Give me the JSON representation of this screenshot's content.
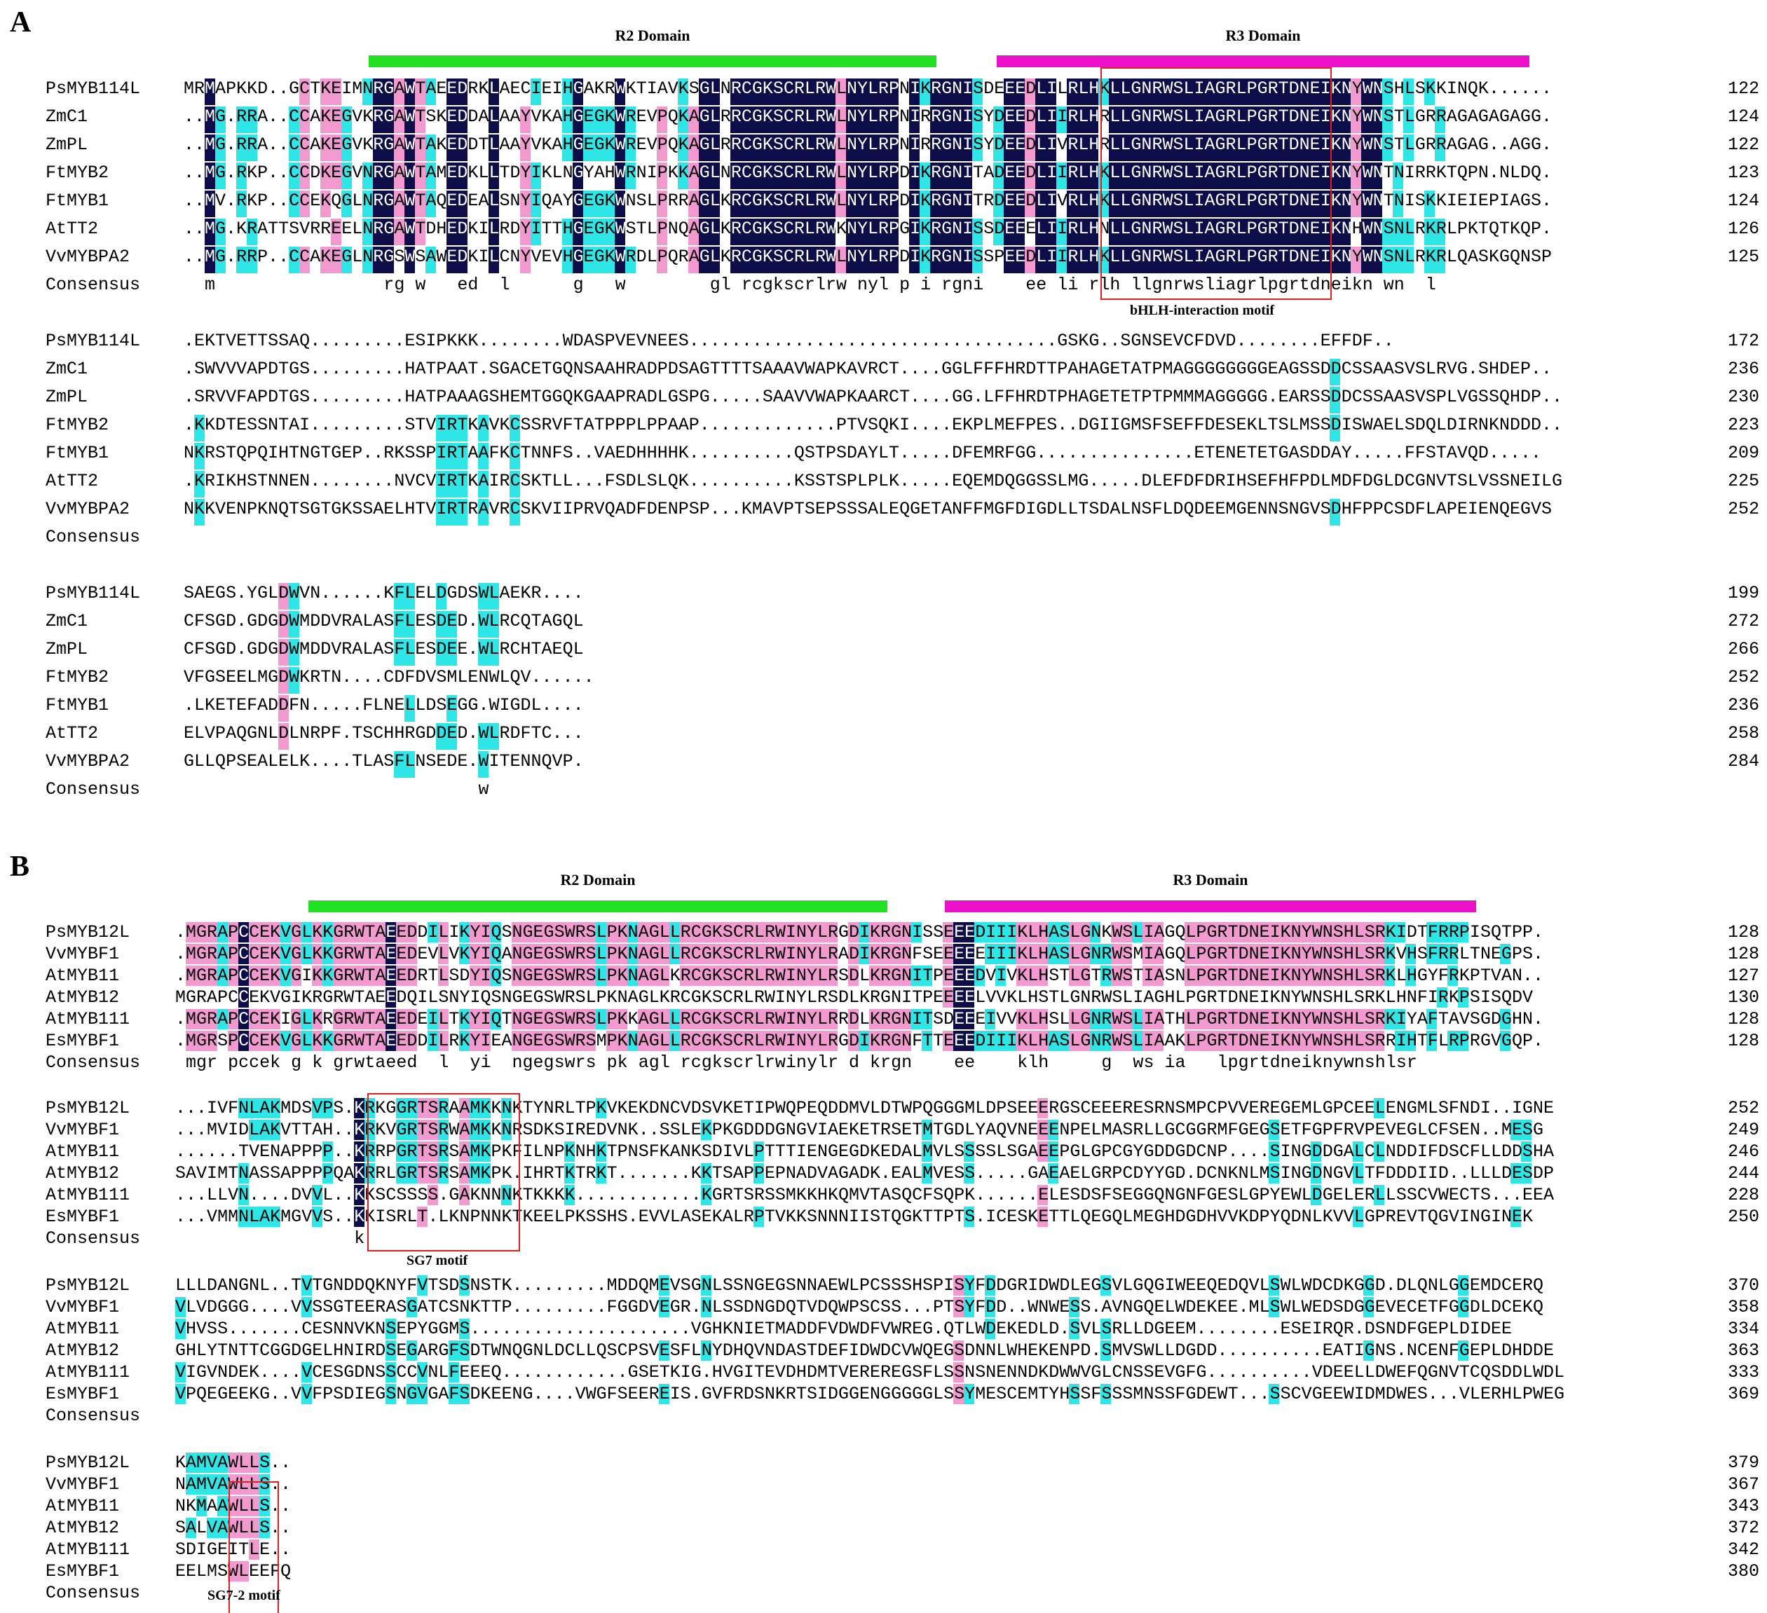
{
  "panels": {
    "A": {
      "label": "A",
      "domains": [
        {
          "name": "R2 Domain",
          "color": "#22e022"
        },
        {
          "name": "R3 Domain",
          "color": "#ee11cc"
        }
      ],
      "motif_label": "bHLH-interaction motif",
      "blocks": [
        {
          "rows": [
            {
              "name": "PsMYB114L",
              "seq": "MRMAPKKD..GCTKEIMNRGAWTAEEDRKLAECIEIHGAKRWKTIAVKSGLNRCGKSCRLRWLNYLRPNIKRGNISDEEEDLILRLHKLLGNRWSLIAGRLPGRTDNEIKNYWNSHLSKKINQK......",
              "end": "122"
            },
            {
              "name": "ZmC1",
              "seq": "..MG.RRA..CCAKEGVKRGAWTSKEDDALAAYVKAHGEGKWREVPQKAGLRRCGKSCRLRWLNYLRPNIRRGNISYDEEDLIIRLHRLLGNRWSLIAGRLPGRTDNEIKNYWNSTLGRRAGAGAGAGG.",
              "end": "124"
            },
            {
              "name": "ZmPL",
              "seq": "..MG.RRA..CCAKEGVKRGAWTAKEDDTLAAYVKAHGEGKWREVPQKAGLRRCGKSCRLRWLNYLRPNIRRGNISYDEEDLIVRLHRLLGNRWSLIAGRLPGRTDNEIKNYWNSTLGRRAGAG..AGG.",
              "end": "122"
            },
            {
              "name": "FtMYB2",
              "seq": "..MG.RKP..CCDKEGVNRGAWTAMEDKLLTDYIKLNGYAHWRNIPKKAGLNRCGKSCRLRWLNYLRPDIKRGNITADEEDLIIRLHKLLGNRWSLIAGRLPGRTDNEIKNYWNTNIRRKTQPN.NLDQ.",
              "end": "123"
            },
            {
              "name": "FtMYB1",
              "seq": "..MV.RKP..CCEKQGLNRGAWTAQEDEALSNYIQAYGEGKWNSLPRRAGLKRCGKSCRLRWLNYLRPDIKRGNITRDEEDLIVRLHKLLGNRWSLIAGRLPGRTDNEIKNYWNTNISKKIEIEPIAGS.",
              "end": "124"
            },
            {
              "name": "AtTT2",
              "seq": "..MG.KRATTSVRREELNRGAWTDHEDKILRDYITTHGEGKWSTLPNQAGLKRCGKSCRLRWKNYLRPGIKRGNISSDEEELIIRLHNLLGNRWSLIAGRLPGRTDNEIKNHWNSNLRKRLPKTQTKQP.",
              "end": "126"
            },
            {
              "name": "VvMYBPA2",
              "seq": "..MG.RRP..CCAKEGLNRGSWSAWEDKILCNYVEVHGEGKWRDLPQRAGLKRCGKSCRLRWLNYLRPDIKRGNISSPEEDLIIRLHKLLGNRWSLIAGRLPGRTDNEIKNYWNSNLRKRLQASKGQNSP",
              "end": "125"
            },
            {
              "name": "Consensus",
              "seq": "  m                rg w   ed  l      g   w        gl rcgkscrlrw nyl p i rgni    ee li rlh llgnrwsliagrlpgrtdneikn wn  l             ",
              "end": ""
            }
          ]
        },
        {
          "rows": [
            {
              "name": "PsMYB114L",
              "seq": ".EKTVETTSSAQ.........ESIPKKK........WDASPVEVNEES...................................GSKG..SGNSEVCFDVD........EFFDF..",
              "end": "172"
            },
            {
              "name": "ZmC1",
              "seq": ".SWVVVAPDTGS.........HATPAAT.SGACETGQNSAAHRADPDSAGTTTTSAAAVWAPKAVRCT....GGLFFFHRDTTPAHAGETATPMAGGGGGGGGEAGSSDDCSSAASVSLRVG.SHDEP..",
              "end": "236"
            },
            {
              "name": "ZmPL",
              "seq": ".SRVVFAPDTGS.........HATPAAAGSHEMTGGQKGAAPRADLGSPG.....SAAVVWAPKAARCT....GG.LFFHRDTPHAGETETPTPMMMAGGGGG.EARSSDDCSSAASVSPLVGSSQHDP..",
              "end": "230"
            },
            {
              "name": "FtMYB2",
              "seq": ".KKDTESSNTAI.........STVIRTKAVKCSSRVFTATPPPLPPAAP.............PTVSQKI....EKPLMEFPES..DGIIGMSFSEFFDESEKLTSLMSSDISWAELSDQLDIRNKNDDD..",
              "end": "223"
            },
            {
              "name": "FtMYB1",
              "seq": "NKRSTQPQIHTNGTGEP..RKSSPIRTAAFKCTNNFS..VAEDHHHHK..........QSTPSDAYLT.....DFEMRFGG...............ETENETETGASDDAY.....FFSTAVQD.....",
              "end": "209"
            },
            {
              "name": "AtTT2",
              "seq": ".KRIKHSTNNEN........NVCVIRTKAIRCSKTLL...FSDLSLQK..........KSSTSPLPLK.....EQEMDQGGSSLMG.....DLEFDFDRIHSEFHFPDLMDFDGLDCGNVTSLVSSNEILG",
              "end": "225"
            },
            {
              "name": "VvMYBPA2",
              "seq": "NKKVENPKNQTSGTGKSSAELHTVIRTRAVRCSKVIIPRVQADFDENPSP...KMAVPTSEPSSSALEQGETANFFMGFDIGDLLTSDALNSFLDQDEEMGENNSNGVSDHFPPCSDFLAPEIENQEGVS",
              "end": "252"
            },
            {
              "name": "Consensus",
              "seq": "",
              "end": ""
            }
          ]
        },
        {
          "rows": [
            {
              "name": "PsMYB114L",
              "seq": "SAEGS.YGLDWVN......KFLELDGDSWLAEKR....",
              "end": "199"
            },
            {
              "name": "ZmC1",
              "seq": "CFSGD.GDGDWMDDVRALASFLESDED.WLRCQTAGQL",
              "end": "272"
            },
            {
              "name": "ZmPL",
              "seq": "CFSGD.GDGDWMDDVRALASFLESDEE.WLRCHTAEQL",
              "end": "266"
            },
            {
              "name": "FtMYB2",
              "seq": "VFGSEELMGDWKRTN....CDFDVSMLENWLQV......",
              "end": "252"
            },
            {
              "name": "FtMYB1",
              "seq": ".LKETEFADDFN.....FLNELLDSEGG.WIGDL....",
              "end": "236"
            },
            {
              "name": "AtTT2",
              "seq": "ELVPAQGNLDLNRPF.TSCHHRGDDED.WLRDFTC...",
              "end": "258"
            },
            {
              "name": "VvMYBPA2",
              "seq": "GLLQPSEALELK....TLASFLNSEDE.WITENNQVP.",
              "end": "284"
            },
            {
              "name": "Consensus",
              "seq": "                            w         ",
              "end": ""
            }
          ]
        }
      ]
    },
    "B": {
      "label": "B",
      "domains": [
        {
          "name": "R2 Domain",
          "color": "#22e022"
        },
        {
          "name": "R3 Domain",
          "color": "#ee11cc"
        }
      ],
      "motif1_label": "SG7 motif",
      "motif2_label": "SG7-2 motif",
      "blocks": [
        {
          "rows": [
            {
              "name": "PsMYB12L",
              "seq": ".MGRAPCCEKVGLKKGRWTAEEDDILIKYIQSNGEGSWRSLPKNAGLLRCGKSCRLRWINYLRGDIKRGNISSEEEDIIIKLHASLGNKWSLIAGQLPGRTDNEIKNYWNSHLSRKIDTFRRPISQTPP.",
              "end": "128"
            },
            {
              "name": "VvMYBF1",
              "seq": ".MGRAPCCEKVGLKKGRWTAEEDEVLVKYIQANGEGSWRSLPKNAGLLRCGKSCRLRWINYLRADIKRGNFSEEEEEIIIKLHASLGNRWSMIAGQLPGRTDNEIKNYWNSHLSRKVHSFRRLTNEGPS.",
              "end": "128"
            },
            {
              "name": "AtMYB11",
              "seq": ".MGRAPCCEKVGIKKGRWTAEEDRTLSDYIQSNGEGSWRSLPKNAGLKRCGKSCRLRWINYLRSDLKRGNITPEEEDVIVKLHSTLGTRWSTIASNLPGRTDNEIKNYWNSHLSRKLHGYFRKPTVAN..",
              "end": "127"
            },
            {
              "name": "AtMYB12",
              "seq": "MGRAPCCEKVGIKRGRWTAEEDQILSNYIQSNGEGSWRSLPKNAGLKRCGKSCRLRWINYLRSDLKRGNITPEEEELVVKLHSTLGNRWSLIAGHLPGRTDNEIKNYWNSHLSRKLHNFIRKPSISQDV",
              "end": "130"
            },
            {
              "name": "AtMYB111",
              "seq": ".MGRAPCCEKIGLKRGRWTAEEDEILTKYIQTNGEGSWRSLPKKAGLLRCGKSCRLRWINYLRRDLKRGNITSDEEEIVVKLHSLLGNRWSLIATHLPGRTDNEIKNYWNSHLSRKIYAFTAVSGDGHN.",
              "end": "128"
            },
            {
              "name": "EsMYBF1",
              "seq": ".MGRSPCCEKVGLKKGRWTAEEDDILRKYIEANGEGSWRSMPKNAGLLRCGKSCRLRWINYLRGDIKRGNFTTEEEDIIIKLHASLGNRWSLIAAKLPGRTDNEIKNYWNSHLSRRIHTFLRPRGVGQP.",
              "end": "128"
            },
            {
              "name": "Consensus",
              "seq": " mgr pccek g k grwtaeed  l  yi  ngegswrs pk agl rcgkscrlrwinylr d krgn    ee    klh     g  ws ia   lpgrtdneiknywnshlsr              ",
              "end": ""
            }
          ]
        },
        {
          "rows": [
            {
              "name": "PsMYB12L",
              "seq": "...IVFNLAKMDSVPS.KRKGGRTSRAAMKKNKTYNRLTPKVKEKDNCVDSVKETIPWQPEQDDMVLDTWPQGGGMLDPSEEERGSCEEERESRNSMPCPVVEREGEMLGPCEELENGMLSFNDI..IGNE",
              "end": "252"
            },
            {
              "name": "VvMYBF1",
              "seq": "...MVIDLAKVTTAH..KRKVGRTSRWAMKKNRSDKSIREDVNK..SSLEKPKGDDDGNGVIAEKETRSETMTGDLYAQVNEEENPELMASRLLGCGGRMFGEGSETFGPFRVPEVEGLCFSEN..MESG",
              "end": "249"
            },
            {
              "name": "AtMYB11",
              "seq": "......TVENAPPPP..KRRPGRTSRSAMKPKFILNPKNHKTPNSFKANKSDIVLPTTTIENGEGDKEDALMVLSSSSLSGAEEPGLGPCGYGDDGDCNP....SINGDDGALCLNDDIFDSCFLLDDSHA",
              "end": "246"
            },
            {
              "name": "AtMYB12",
              "seq": "SAVIMTNASSAPPPPQAKRRLGRTSRSAMKPK.IHRTKTRKT.......KKTSAPPEPNADVAGADK.EALMVESS.....GAEAELGRPCDYYGD.DCNKNLMSINGDNGVLTFDDDIID..LLLDESDP",
              "end": "244"
            },
            {
              "name": "AtMYB111",
              "seq": "...LLVN....DVVL..KKSCSSSS.GAKNNNKTKKKK............KGRTSRSSMKKHKQMVTASQCFSQPK......ELESDSFSEGGQNGNFGESLGPYEWLDGELERLLSSCVWECTS...EEA",
              "end": "228"
            },
            {
              "name": "EsMYBF1",
              "seq": "...VMMNLAKMGVVS..KKISRLT.LKNPNNKTKEELPKSSHS.EVVLASEKALRPTVKKSNNNIISTQGKTTPTS.ICESKETTLQEGQLMEGHDGDHVVKDPYQDNLKVVLGPREVTQGVINGINEK",
              "end": "250"
            },
            {
              "name": "Consensus",
              "seq": "                 k                                                                                                                    ",
              "end": ""
            }
          ]
        },
        {
          "rows": [
            {
              "name": "PsMYB12L",
              "seq": "LLLDANGNL..TVTGNDDQKNYFVTSDSNSTK.........MDDQMEVSGNLSSNGEGSNNAEWLPCSSSHSPISYFDDGRIDWDLEGSVLGQGIWEEQEDQVLSWLWDCDKGGD.DLQNLGGEMDCERQ",
              "end": "370"
            },
            {
              "name": "VvMYBF1",
              "seq": "VLVDGGG....VVSSGTEERASGATCSNKTTP.........FGGDVEGR.NLSSDNGDQTVDQWPSCSS...PTSYFDD..WNWESS.AVNGQELWDEKEE.MLSWLWEDSDGGEVECETFGGDLDCEKQ",
              "end": "358"
            },
            {
              "name": "AtMYB11",
              "seq": "VHVSS.......CESNNVKNSEPYGGMS.....................VGHKNIETMADDFVDWDFVWREG.QTLWDEKEDLD.SVLSRLLDGEEM........ESEIRQR.DSNDFGEPLDIDEE",
              "end": "334"
            },
            {
              "name": "AtMYB12",
              "seq": "GHLYTNTTCGGDGELHNIRDSEGARGFSDTWNQGNLDCLLQSCPSVESFLNYDHQVNDASTDEFIDWDCVWQEGSDNNLWHEKENPD.SMVSWLLDGDD..........EATIGNS.NCENFGEPLDHDDE",
              "end": "363"
            },
            {
              "name": "AtMYB111",
              "seq": "VIGVNDEK....VCESGDNSSCCVNLFEEEQ............GSETKIG.HVGITEVDHDMTVEREREGSFLSSNSNENNDKDWWVGLCNSSEVGFG..........VDEELLDWEFQGNVTCQSDDLWDL",
              "end": "333"
            },
            {
              "name": "EsMYBF1",
              "seq": "VPQEGEEKG..VVFPSDIEGSNGVGAFSDKEENG....VWGFSEEREIS.GVFRDSNKRTSIDGGENGGGGGLSSYMESCEMTYHSSFSSSMNSSFGDEWT...SSCVGEEWIDMDWES...VLERHLPWEG",
              "end": "369"
            },
            {
              "name": "Consensus",
              "seq": "",
              "end": ""
            }
          ]
        },
        {
          "rows": [
            {
              "name": "PsMYB12L",
              "seq": "KAMVAWLLS..",
              "end": "379"
            },
            {
              "name": "VvMYBF1",
              "seq": "NAMVAWLLS..",
              "end": "367"
            },
            {
              "name": "AtMYB11",
              "seq": "NKMAAWLLS..",
              "end": "343"
            },
            {
              "name": "AtMYB12",
              "seq": "SALVAWLLS..",
              "end": "372"
            },
            {
              "name": "AtMYB111",
              "seq": "SDIGEITLE..",
              "end": "342"
            },
            {
              "name": "EsMYBF1",
              "seq": "EELMSWLEEFQ",
              "end": "380"
            },
            {
              "name": "Consensus",
              "seq": "",
              "end": ""
            }
          ]
        }
      ]
    }
  },
  "colors": {
    "identical": "#0d0d4a",
    "similar": "#2ee6e6",
    "partial": "#f29ad0",
    "motif_box": "#e02020"
  }
}
